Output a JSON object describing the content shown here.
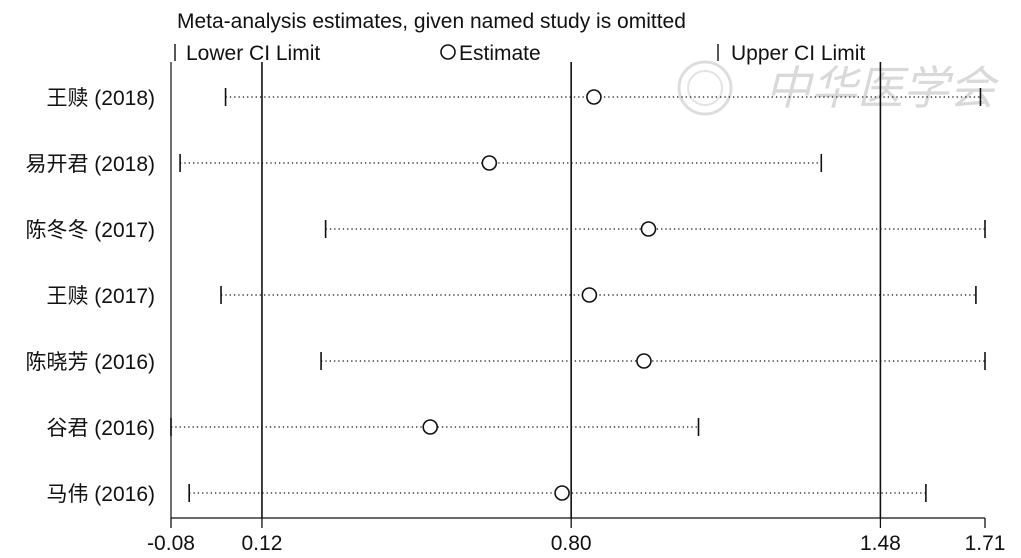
{
  "chart_data": {
    "type": "forest",
    "title": "Meta-analysis estimates, given named study is omitted",
    "legend": {
      "lower": "Lower CI Limit",
      "estimate": "Estimate",
      "upper": "Upper CI Limit"
    },
    "xlim": [
      -0.08,
      1.71
    ],
    "xticks": [
      -0.08,
      0.12,
      0.8,
      1.48,
      1.71
    ],
    "xtick_labels": [
      "-0.08",
      "0.12",
      "0.80",
      "1.48",
      "1.71"
    ],
    "reference_lines": [
      0.12,
      0.8,
      1.48
    ],
    "studies": [
      {
        "label": "王赎 (2018)",
        "lower": 0.04,
        "estimate": 0.85,
        "upper": 1.7
      },
      {
        "label": "易开君 (2018)",
        "lower": -0.06,
        "estimate": 0.62,
        "upper": 1.35
      },
      {
        "label": "陈冬冬 (2017)",
        "lower": 0.26,
        "estimate": 0.97,
        "upper": 1.71
      },
      {
        "label": "王赎 (2017)",
        "lower": 0.03,
        "estimate": 0.84,
        "upper": 1.69
      },
      {
        "label": "陈晓芳 (2016)",
        "lower": 0.25,
        "estimate": 0.96,
        "upper": 1.71
      },
      {
        "label": "谷君 (2016)",
        "lower": -0.08,
        "estimate": 0.49,
        "upper": 1.08
      },
      {
        "label": "马伟 (2016)",
        "lower": -0.04,
        "estimate": 0.78,
        "upper": 1.58
      }
    ]
  },
  "watermark": "中华医学会"
}
